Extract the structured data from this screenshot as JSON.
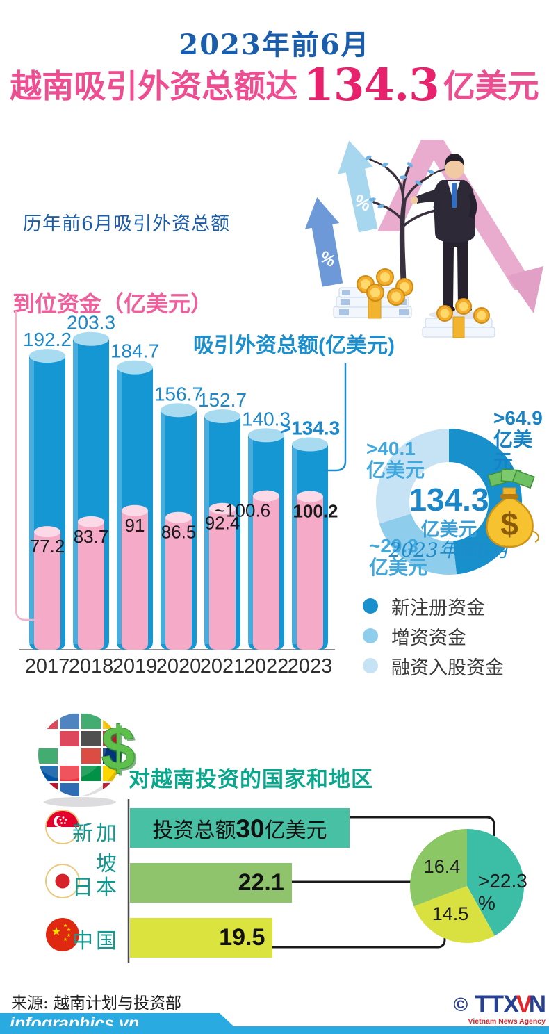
{
  "header": {
    "subtitle": "2023年前6月",
    "title_prefix": "越南吸引外资总额达",
    "title_number": "134.3",
    "title_suffix": "亿美元"
  },
  "section_history": {
    "label": "历年前6月吸引外资总额",
    "pink_axis_label": "到位资金（亿美元）",
    "blue_axis_label": "吸引外资总额(亿美元)"
  },
  "section_countries": {
    "label": "对越南投资的国家和地区"
  },
  "chart_data": [
    {
      "type": "bar",
      "title": "历年前6月吸引外资总额",
      "categories": [
        "2017",
        "2018",
        "2019",
        "2020",
        "2021",
        "2022",
        "2023"
      ],
      "series": [
        {
          "name": "吸引外资总额(亿美元)",
          "values": [
            192.2,
            203.3,
            184.7,
            156.7,
            152.7,
            140.3,
            134.3
          ],
          "labels": [
            "192.2",
            "203.3",
            "184.7",
            "156.7",
            "152.7",
            "140.3",
            ">134.3"
          ],
          "label_bold": [
            false,
            false,
            false,
            false,
            false,
            false,
            true
          ],
          "color": "#1597d4",
          "top_color": "#a9dbf0",
          "label_color": "#1d87c8"
        },
        {
          "name": "到位资金（亿美元）",
          "values": [
            77.2,
            83.7,
            91,
            86.5,
            92.4,
            100.6,
            100.2
          ],
          "labels": [
            "77.2",
            "83.7",
            "91",
            "86.5",
            "92.4",
            "~100.6",
            "100.2"
          ],
          "label_bold": [
            false,
            false,
            false,
            false,
            false,
            false,
            true
          ],
          "color": "#f5abc8",
          "top_color": "#fbd9e6",
          "label_color": "#1a1a1a"
        }
      ],
      "ylim": [
        0,
        210
      ],
      "unit": "亿美元"
    },
    {
      "type": "donut",
      "center_value": "134.3",
      "center_unit": "亿美元",
      "center_period": "2023年前6月",
      "total": 134.3,
      "segments": [
        {
          "name": "新注册资金",
          "value": 64.9,
          "label_value": ">64.9",
          "label_unit": "亿美元",
          "color": "#1790cc",
          "label_color": "#1583c5"
        },
        {
          "name": "增资资金",
          "value": 29.3,
          "label_value": "~29.3",
          "label_unit": "亿美元",
          "color": "#8ecdec",
          "label_color": "#41a8de"
        },
        {
          "name": "融资入股资金",
          "value": 40.1,
          "label_value": ">40.1",
          "label_unit": "亿美元",
          "color": "#c6e3f5",
          "label_color": "#41a8de"
        }
      ]
    },
    {
      "type": "bar",
      "title": "对越南投资的国家和地区",
      "categories": [
        "新加坡",
        "日本",
        "中国"
      ],
      "values": [
        30,
        22.1,
        19.5
      ],
      "bar_colors": [
        "#47c0a4",
        "#90c46c",
        "#dbe33e"
      ],
      "value_labels": [
        "投资总额30亿美元",
        "22.1",
        "19.5"
      ],
      "first_bar_label": {
        "prefix": "投资总额",
        "number": "30",
        "suffix": "亿美元"
      },
      "xlim": [
        0,
        30
      ],
      "unit": "亿美元"
    },
    {
      "type": "pie",
      "values": [
        22.3,
        14.5,
        16.4
      ],
      "labels": [
        ">22.3 %",
        "14.5",
        "16.4"
      ],
      "colors": [
        "#3cbda5",
        "#d8e13f",
        "#8cc765"
      ]
    }
  ],
  "footer": {
    "source": "来源: 越南计划与投资部",
    "site": "infographics.vn",
    "copyright": "©",
    "agency_t1": "TTX",
    "agency_v": "V",
    "agency_n": "N",
    "agency_sub": "Vietnam News Agency"
  },
  "icons": {
    "growth_arrows": "percent-up-arrows-icon",
    "money_tree": "money-tree-icon",
    "businessman": "businessman-icon",
    "money_stacks": "money-stack-icon",
    "money_bag": "money-bag-icon",
    "flag_globe": "flag-globe-icon",
    "dollar_sign": "dollar-sign-icon",
    "flag_singapore": "singapore-flag-icon",
    "flag_japan": "japan-flag-icon",
    "flag_china": "china-flag-icon"
  }
}
